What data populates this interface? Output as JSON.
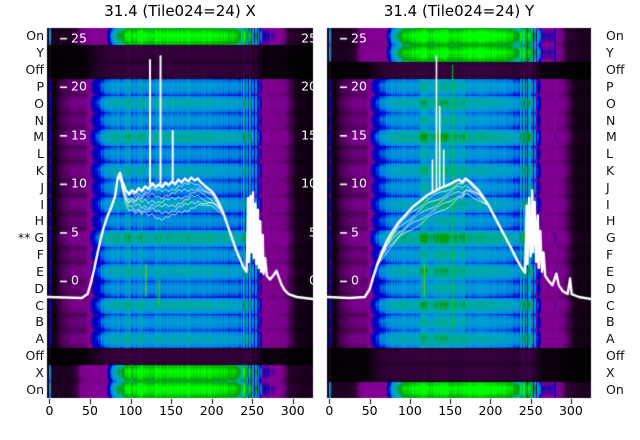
{
  "chart_data": {
    "type": "heatmap",
    "titles": [
      "31.4 (Tile024=24) X",
      "31.4 (Tile024=24) Y"
    ],
    "x_ticks": [
      0,
      50,
      100,
      150,
      200,
      250,
      300
    ],
    "y_ticks": [
      25,
      20,
      15,
      10,
      5,
      0
    ],
    "xlim": [
      -3,
      325
    ],
    "ylim": [
      -12,
      26.1
    ],
    "row_labels": [
      "On",
      "Y",
      "Off",
      "P",
      "O",
      "N",
      "M",
      "L",
      "K",
      "J",
      "I",
      "H",
      "G",
      "F",
      "E",
      "D",
      "C",
      "B",
      "A",
      "Off",
      "X",
      "On"
    ],
    "row_marker": {
      "index": 12,
      "text": "**"
    },
    "colors": {
      "overlay_line": "#ffffff",
      "axis_tick": "#000000",
      "title_text": "#000000",
      "row_label_text": "#111111"
    },
    "colormap": [
      [
        0,
        [
          0,
          0,
          0
        ]
      ],
      [
        0.05,
        [
          119,
          0,
          136
        ]
      ],
      [
        0.1,
        [
          136,
          0,
          153
        ]
      ],
      [
        0.15,
        [
          0,
          0,
          170
        ]
      ],
      [
        0.2,
        [
          0,
          0,
          221
        ]
      ],
      [
        0.25,
        [
          0,
          119,
          221
        ]
      ],
      [
        0.3,
        [
          0,
          153,
          221
        ]
      ],
      [
        0.35,
        [
          0,
          170,
          170
        ]
      ],
      [
        0.4,
        [
          0,
          170,
          136
        ]
      ],
      [
        0.45,
        [
          0,
          153,
          0
        ]
      ],
      [
        0.5,
        [
          0,
          187,
          0
        ]
      ],
      [
        0.55,
        [
          0,
          221,
          0
        ]
      ],
      [
        0.6,
        [
          0,
          255,
          0
        ]
      ],
      [
        0.75,
        [
          0,
          255,
          0
        ]
      ]
    ],
    "envelope": [
      [
        -3,
        0.02
      ],
      [
        8,
        0.03
      ],
      [
        16,
        0.1
      ],
      [
        28,
        0.14
      ],
      [
        46,
        0.15
      ],
      [
        56,
        0.55
      ],
      [
        68,
        0.85
      ],
      [
        85,
        1.0
      ],
      [
        212,
        1.0
      ],
      [
        232,
        0.9
      ],
      [
        246,
        0.7
      ],
      [
        256,
        0.42
      ],
      [
        263,
        0.24
      ],
      [
        288,
        0.2
      ],
      [
        298,
        0.09
      ],
      [
        305,
        0.03
      ],
      [
        325,
        0.02
      ]
    ],
    "panels": [
      {
        "title": "31.4 (Tile024=24) X",
        "row_values": [
          0.6,
          0.022,
          0.022,
          0.3,
          0.34,
          0.295,
          0.365,
          0.285,
          0.33,
          0.29,
          0.325,
          0.285,
          0.375,
          0.3,
          0.34,
          0.29,
          0.35,
          0.3,
          0.33,
          0.022,
          0.58,
          0.6
        ],
        "streaks": [
          {
            "x": 0.5,
            "add": 0.5,
            "w": 1.5
          },
          {
            "x": 237,
            "add": 0.25,
            "w": 1
          },
          {
            "x": 240.5,
            "add": 0.45,
            "w": 1.2
          },
          {
            "x": 244,
            "add": 0.3,
            "w": 1
          },
          {
            "x": 247.5,
            "add": 0.5,
            "w": 1.4
          },
          {
            "x": 251,
            "add": 0.35,
            "w": 1
          },
          {
            "x": 254.5,
            "add": 0.45,
            "w": 1.2
          },
          {
            "x": 258,
            "add": 0.3,
            "w": 1
          },
          {
            "x": 261,
            "add": 0.2,
            "w": 1
          }
        ],
        "green_boost": null,
        "color_streaks": [
          {
            "x": 119,
            "y0": 14,
            "y1": 16,
            "color": "#7ccc00"
          },
          {
            "x": 135,
            "y0": 15,
            "y1": 16.5,
            "color": "#44cc00"
          }
        ],
        "overlay_profile": [
          [
            -3,
            -1.6
          ],
          [
            20,
            -1.65
          ],
          [
            40,
            -1.7
          ],
          [
            47,
            -1.3
          ],
          [
            51,
            -0.2
          ],
          [
            55,
            1.2
          ],
          [
            59,
            2.8
          ],
          [
            63,
            4.3
          ],
          [
            67,
            5.6
          ],
          [
            72,
            6.8
          ],
          [
            77,
            7.8
          ],
          [
            81,
            8.8
          ],
          [
            84,
            10.6
          ],
          [
            87,
            11.2
          ],
          [
            90,
            10.3
          ],
          [
            94,
            9.4
          ],
          [
            98,
            9.0
          ],
          [
            102,
            9.4
          ],
          [
            106,
            9.1
          ],
          [
            110,
            9.6
          ],
          [
            114,
            9.3
          ],
          [
            118,
            9.8
          ],
          [
            122,
            9.5
          ],
          [
            127,
            10.1
          ],
          [
            131,
            9.7
          ],
          [
            135,
            10.0
          ],
          [
            139,
            9.7
          ],
          [
            143,
            10.2
          ],
          [
            147,
            9.9
          ],
          [
            151,
            10.3
          ],
          [
            155,
            10.0
          ],
          [
            159,
            10.5
          ],
          [
            163,
            10.2
          ],
          [
            167,
            10.6
          ],
          [
            171,
            10.3
          ],
          [
            175,
            10.7
          ],
          [
            179,
            10.4
          ],
          [
            183,
            10.6
          ],
          [
            187,
            10.2
          ],
          [
            191,
            9.9
          ],
          [
            195,
            9.6
          ],
          [
            200,
            9.3
          ],
          [
            205,
            8.7
          ],
          [
            210,
            7.9
          ],
          [
            215,
            6.9
          ],
          [
            220,
            5.7
          ],
          [
            225,
            4.5
          ],
          [
            230,
            3.3
          ],
          [
            235,
            2.3
          ],
          [
            239,
            1.5
          ],
          [
            243,
            1.0
          ],
          [
            244,
            4.0
          ],
          [
            245,
            8.6
          ],
          [
            246,
            2.0
          ],
          [
            247,
            6.0
          ],
          [
            248,
            8.8
          ],
          [
            249,
            3.0
          ],
          [
            250,
            7.0
          ],
          [
            251,
            9.2
          ],
          [
            252,
            2.4
          ],
          [
            254,
            8.0
          ],
          [
            255,
            1.8
          ],
          [
            257,
            7.4
          ],
          [
            258,
            1.4
          ],
          [
            260,
            6.2
          ],
          [
            261,
            1.0
          ],
          [
            263,
            4.8
          ],
          [
            264,
            0.8
          ],
          [
            266,
            2.4
          ],
          [
            268,
            0.6
          ],
          [
            272,
            0.2
          ],
          [
            276,
            0.6
          ],
          [
            280,
            1.1
          ],
          [
            283,
            0.4
          ],
          [
            286,
            -0.3
          ],
          [
            290,
            -0.9
          ],
          [
            295,
            -1.3
          ],
          [
            305,
            -1.6
          ],
          [
            325,
            -1.8
          ]
        ],
        "spikes": [
          {
            "x": 124,
            "top": 22.8
          },
          {
            "x": 137,
            "top": 23.2
          },
          {
            "x": 152,
            "top": 15.5
          }
        ],
        "band": {
          "count": 6,
          "spread": 3.4,
          "x0": 84,
          "x1": 214
        }
      },
      {
        "title": "31.4 (Tile024=24) Y",
        "row_values": [
          0.6,
          0.58,
          0.022,
          0.3,
          0.34,
          0.295,
          0.365,
          0.285,
          0.33,
          0.29,
          0.325,
          0.285,
          0.375,
          0.3,
          0.34,
          0.29,
          0.35,
          0.3,
          0.33,
          0.022,
          0.022,
          0.6
        ],
        "streaks": [
          {
            "x": 0.5,
            "add": 0.5,
            "w": 1.5
          },
          {
            "x": 238,
            "add": 0.3,
            "w": 1
          },
          {
            "x": 241.5,
            "add": 0.5,
            "w": 1.3
          },
          {
            "x": 245,
            "add": 0.35,
            "w": 1
          },
          {
            "x": 248.5,
            "add": 0.55,
            "w": 1.5
          },
          {
            "x": 252,
            "add": 0.4,
            "w": 1
          },
          {
            "x": 255.5,
            "add": 0.5,
            "w": 1.2
          },
          {
            "x": 259,
            "add": 0.3,
            "w": 1
          },
          {
            "x": 262,
            "add": 0.2,
            "w": 1
          },
          {
            "x": 280,
            "add": 0.12,
            "w": 1
          }
        ],
        "green_boost": {
          "x0": 112,
          "x1": 168,
          "add": 0.055
        },
        "color_streaks": [
          {
            "x": 153,
            "y0": 2.2,
            "y1": 18,
            "color": "#00cc22"
          },
          {
            "x": 118,
            "y0": 14,
            "y1": 16,
            "color": "#55cc00"
          }
        ],
        "overlay_profile": [
          [
            -3,
            -1.6
          ],
          [
            25,
            -1.7
          ],
          [
            44,
            -1.6
          ],
          [
            50,
            -0.8
          ],
          [
            55,
            0.6
          ],
          [
            60,
            1.9
          ],
          [
            65,
            3.0
          ],
          [
            71,
            4.1
          ],
          [
            78,
            5.1
          ],
          [
            86,
            6.1
          ],
          [
            95,
            6.9
          ],
          [
            104,
            7.7
          ],
          [
            113,
            8.3
          ],
          [
            122,
            8.9
          ],
          [
            131,
            9.3
          ],
          [
            140,
            9.7
          ],
          [
            149,
            10.0
          ],
          [
            156,
            10.3
          ],
          [
            161,
            10.5
          ],
          [
            165,
            10.2
          ],
          [
            169,
            10.6
          ],
          [
            174,
            10.3
          ],
          [
            179,
            9.9
          ],
          [
            185,
            9.4
          ],
          [
            191,
            8.7
          ],
          [
            198,
            7.8
          ],
          [
            205,
            6.7
          ],
          [
            212,
            5.6
          ],
          [
            219,
            4.5
          ],
          [
            226,
            3.4
          ],
          [
            232,
            2.4
          ],
          [
            238,
            1.5
          ],
          [
            243,
            0.9
          ],
          [
            244,
            3.5
          ],
          [
            245,
            7.8
          ],
          [
            246,
            1.8
          ],
          [
            248,
            8.6
          ],
          [
            250,
            2.6
          ],
          [
            252,
            9.4
          ],
          [
            253,
            3.0
          ],
          [
            255,
            8.2
          ],
          [
            257,
            2.0
          ],
          [
            259,
            6.8
          ],
          [
            260,
            1.4
          ],
          [
            262,
            5.2
          ],
          [
            264,
            1.0
          ],
          [
            266,
            3.0
          ],
          [
            268,
            0.6
          ],
          [
            272,
            0.1
          ],
          [
            277,
            -0.4
          ],
          [
            282,
            0.8
          ],
          [
            285,
            -0.4
          ],
          [
            290,
            -1.0
          ],
          [
            296,
            -1.3
          ],
          [
            299,
            0.3
          ],
          [
            301,
            -1.3
          ],
          [
            310,
            -1.6
          ],
          [
            325,
            -1.8
          ]
        ],
        "spikes": [
          {
            "x": 128,
            "top": 12.5
          },
          {
            "x": 133,
            "top": 23.2
          },
          {
            "x": 137,
            "top": 18.0
          },
          {
            "x": 142,
            "top": 13.5
          }
        ],
        "band": {
          "count": 5,
          "spread": 2.4,
          "x0": 58,
          "x1": 196
        }
      }
    ]
  }
}
